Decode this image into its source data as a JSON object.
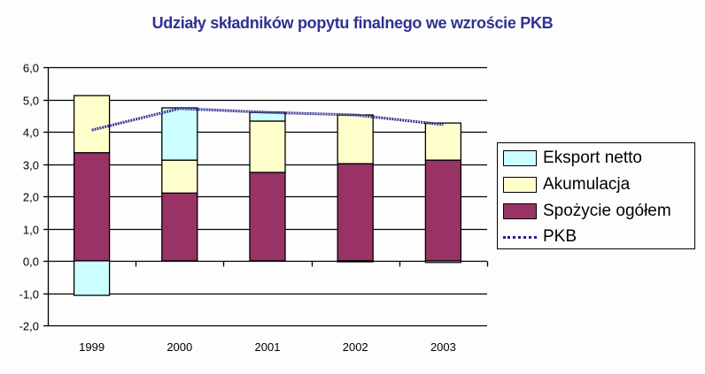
{
  "chart_data": {
    "type": "bar",
    "stacked": true,
    "title": "Udziały składników popytu finalnego we wzroście PKB",
    "xlabel": "",
    "ylabel": "",
    "categories": [
      "1999",
      "2000",
      "2001",
      "2002",
      "2003"
    ],
    "ylim": [
      -2.0,
      6.0
    ],
    "yticks": [
      "6,0",
      "5,0",
      "4,0",
      "3,0",
      "2,0",
      "1,0",
      "0,0",
      "-1,0",
      "-2,0"
    ],
    "grid": true,
    "legend_position": "right",
    "series": [
      {
        "name": "Spożycie ogółem",
        "type": "bar",
        "color": "#993366",
        "values": [
          3.35,
          2.1,
          2.74,
          3.01,
          3.12
        ]
      },
      {
        "name": "Akumulacja",
        "type": "bar",
        "color": "#ffffcc",
        "values": [
          1.77,
          1.02,
          1.59,
          1.51,
          1.15
        ]
      },
      {
        "name": "Eksport netto",
        "type": "bar",
        "color": "#ccffff",
        "values": [
          -1.07,
          1.62,
          0.27,
          -0.03,
          -0.05
        ]
      },
      {
        "name": "PKB",
        "type": "line",
        "color": "#1f1f8a",
        "values": [
          4.05,
          4.72,
          4.6,
          4.52,
          4.22
        ]
      }
    ]
  },
  "legend": {
    "items": [
      {
        "label": "Eksport netto",
        "kind": "swatch",
        "color": "#ccffff"
      },
      {
        "label": "Akumulacja",
        "kind": "swatch",
        "color": "#ffffcc"
      },
      {
        "label": "Spożycie ogółem",
        "kind": "swatch",
        "color": "#993366"
      },
      {
        "label": "PKB",
        "kind": "line",
        "color": "#1f1f8a"
      }
    ]
  }
}
